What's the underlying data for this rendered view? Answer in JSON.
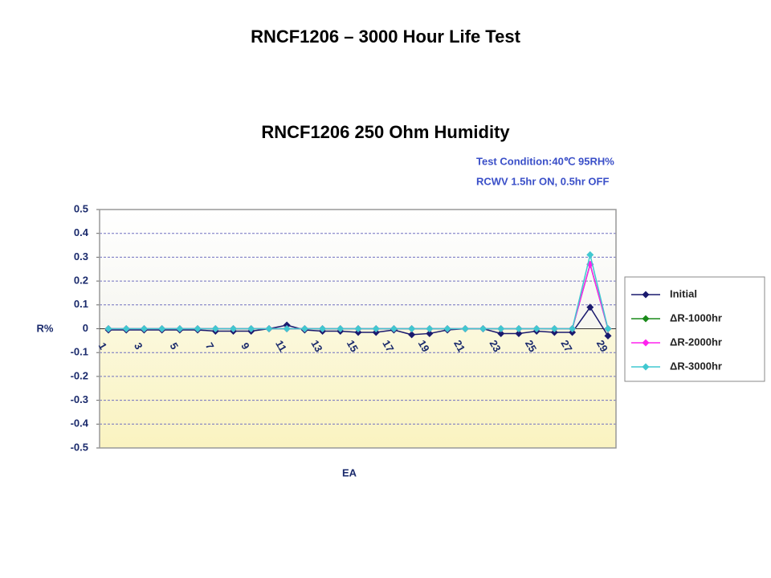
{
  "chart_data": {
    "type": "line",
    "page_title": "RNCF1206 – 3000 Hour Life Test",
    "title": "RNCF1206 250 Ohm Humidity",
    "annotations": [
      "Test Condition:40℃ 95RH%",
      "RCWV 1.5hr ON, 0.5hr OFF"
    ],
    "x_label": "EA",
    "y_label": "R%",
    "categories": [
      "1",
      null,
      "3",
      null,
      "5",
      null,
      "7",
      null,
      "9",
      null,
      "11",
      null,
      "13",
      null,
      "15",
      null,
      "17",
      null,
      "19",
      null,
      "21",
      null,
      "23",
      null,
      "25",
      null,
      "27",
      null,
      "29"
    ],
    "series": [
      {
        "name": "Initial",
        "color": "#1a1a6e",
        "values": [
          -0.005,
          -0.005,
          -0.005,
          -0.005,
          -0.005,
          -0.005,
          -0.01,
          -0.01,
          -0.01,
          0,
          0.015,
          -0.005,
          -0.01,
          -0.01,
          -0.015,
          -0.015,
          -0.005,
          -0.025,
          -0.02,
          -0.005,
          0,
          0,
          -0.02,
          -0.02,
          -0.01,
          -0.015,
          -0.015,
          0.09,
          -0.03
        ]
      },
      {
        "name": "ΔR-1000hr",
        "color": "#1a8a1a",
        "values": [
          0,
          0,
          0,
          0,
          0,
          0,
          0,
          0,
          0,
          0,
          0,
          0,
          0,
          0,
          0,
          0,
          0,
          0,
          0,
          0,
          0,
          0,
          0,
          0,
          0,
          0,
          0,
          0.27,
          0
        ]
      },
      {
        "name": "ΔR-2000hr",
        "color": "#ff22ee",
        "values": [
          0,
          0,
          0,
          0,
          0,
          0,
          0,
          0,
          0,
          0,
          0,
          0,
          0,
          0,
          0,
          0,
          0,
          0,
          0,
          0,
          0,
          0,
          0,
          0,
          0,
          0,
          0,
          0.27,
          0
        ]
      },
      {
        "name": "ΔR-3000hr",
        "color": "#40c8d0",
        "values": [
          0,
          0,
          0,
          0,
          0,
          0,
          0,
          0,
          0,
          0,
          0,
          0,
          0,
          0,
          0,
          0,
          0,
          0,
          0,
          0,
          0,
          0,
          0,
          0,
          0,
          0,
          0,
          0.31,
          0
        ]
      }
    ],
    "ylim": [
      -0.5,
      0.5
    ],
    "yticks": [
      0.5,
      0.4,
      0.3,
      0.2,
      0.1,
      0,
      -0.1,
      -0.2,
      -0.3,
      -0.4,
      -0.5
    ],
    "grid": true
  }
}
